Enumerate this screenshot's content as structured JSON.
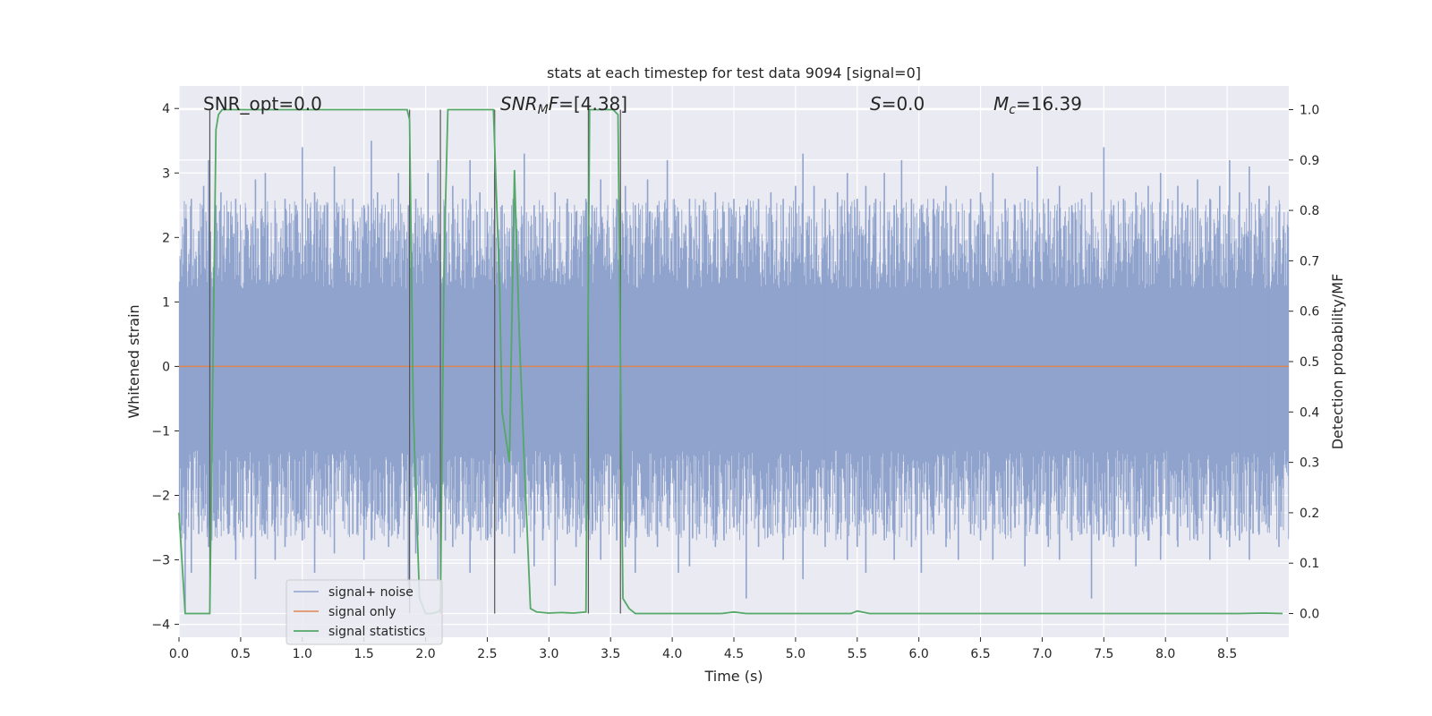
{
  "chart_data": {
    "type": "line",
    "title": "stats at each timestep for test data 9094 [signal=0]",
    "xlabel": "Time (s)",
    "ylabel": "Whitened strain",
    "y2label": "Detection probability/MF",
    "xlim": [
      0,
      9.0
    ],
    "ylim": [
      -4.2,
      4.35
    ],
    "y2lim": [
      -0.047,
      1.047
    ],
    "xticks": [
      "0.0",
      "0.5",
      "1.0",
      "1.5",
      "2.0",
      "2.5",
      "3.0",
      "3.5",
      "4.0",
      "4.5",
      "5.0",
      "5.5",
      "6.0",
      "6.5",
      "7.0",
      "7.5",
      "8.0",
      "8.5"
    ],
    "yticks": [
      "−4",
      "−3",
      "−2",
      "−1",
      "0",
      "1",
      "2",
      "3",
      "4"
    ],
    "y2ticks": [
      "0.0",
      "0.1",
      "0.2",
      "0.3",
      "0.4",
      "0.5",
      "0.6",
      "0.7",
      "0.8",
      "0.9",
      "1.0"
    ],
    "grid": true,
    "legend_position": "lower-left",
    "annotations": {
      "snr_opt": "SNR_opt=0.0",
      "snr_mf_prefix": "SNR",
      "snr_mf_sub": "M",
      "snr_mf_suffix": "F=[4.38]",
      "s_symbol": "S",
      "s_value": "=0.0",
      "mc_symbol": "M",
      "mc_sub": "c",
      "mc_value": "=16.39"
    },
    "series": [
      {
        "name": "signal+ noise",
        "color": "#8fa3cd",
        "style": "noise",
        "band": [
          -1.2,
          1.1
        ],
        "x": [
          0.05,
          0.1,
          0.16,
          0.2,
          0.24,
          0.3,
          0.34,
          0.4,
          0.46,
          0.55,
          0.62,
          0.7,
          0.78,
          0.86,
          0.95,
          1.0,
          1.05,
          1.1,
          1.18,
          1.26,
          1.33,
          1.41,
          1.5,
          1.56,
          1.61,
          1.7,
          1.78,
          1.86,
          1.92,
          2.02,
          2.1,
          2.16,
          2.22,
          2.3,
          2.36,
          2.44,
          2.5,
          2.56,
          2.62,
          2.72,
          2.8,
          2.88,
          2.95,
          3.05,
          3.15,
          3.22,
          3.3,
          3.35,
          3.42,
          3.55,
          3.62,
          3.7,
          3.8,
          3.88,
          3.96,
          4.05,
          4.14,
          4.22,
          4.35,
          4.42,
          4.5,
          4.6,
          4.7,
          4.8,
          4.9,
          5.0,
          5.06,
          5.15,
          5.24,
          5.34,
          5.42,
          5.5,
          5.57,
          5.65,
          5.72,
          5.8,
          5.86,
          5.94,
          6.02,
          6.12,
          6.22,
          6.32,
          6.42,
          6.5,
          6.6,
          6.7,
          6.78,
          6.86,
          6.96,
          7.05,
          7.14,
          7.24,
          7.32,
          7.4,
          7.5,
          7.58,
          7.66,
          7.76,
          7.86,
          7.96,
          8.02,
          8.1,
          8.18,
          8.26,
          8.36,
          8.44,
          8.52,
          8.6,
          8.68,
          8.76,
          8.84,
          8.92
        ],
        "peaks_high": [
          2.3,
          2.6,
          2.1,
          2.8,
          3.2,
          2.5,
          2.7,
          2.4,
          2.6,
          2.2,
          2.9,
          3.0,
          2.4,
          2.6,
          2.5,
          3.4,
          2.3,
          2.7,
          2.5,
          3.1,
          2.3,
          2.6,
          2.5,
          3.5,
          2.7,
          2.4,
          3.0,
          2.5,
          2.6,
          3.0,
          3.2,
          2.5,
          2.8,
          2.6,
          3.2,
          2.7,
          2.4,
          3.0,
          2.5,
          2.6,
          3.3,
          2.5,
          2.5,
          2.7,
          2.6,
          2.4,
          2.6,
          2.5,
          2.9,
          2.6,
          2.8,
          2.5,
          2.9,
          2.5,
          3.2,
          2.4,
          2.6,
          2.5,
          2.7,
          2.4,
          2.6,
          2.5,
          2.6,
          2.7,
          2.6,
          2.8,
          3.3,
          2.8,
          2.6,
          2.7,
          3.0,
          2.6,
          2.8,
          2.6,
          3.0,
          2.5,
          3.2,
          2.6,
          2.5,
          2.6,
          2.8,
          2.4,
          2.6,
          2.7,
          3.0,
          2.6,
          2.5,
          2.6,
          3.1,
          2.6,
          2.8,
          2.5,
          2.6,
          2.7,
          3.4,
          2.5,
          2.6,
          2.7,
          2.8,
          3.0,
          2.6,
          2.8,
          2.5,
          2.9,
          2.6,
          2.8,
          3.2,
          2.7,
          3.1,
          2.6,
          2.8,
          2.4
        ],
        "peaks_low": [
          -3.8,
          -3.2,
          -2.6,
          -2.2,
          -2.8,
          -2.5,
          -2.4,
          -2.6,
          -3.0,
          -2.5,
          -3.3,
          -2.6,
          -3.0,
          -2.8,
          -2.4,
          -2.7,
          -2.5,
          -3.2,
          -2.6,
          -2.9,
          -2.4,
          -2.6,
          -3.0,
          -2.7,
          -2.3,
          -2.8,
          -2.6,
          -3.4,
          -2.9,
          -2.5,
          -3.3,
          -2.7,
          -2.8,
          -2.6,
          -3.2,
          -2.5,
          -2.7,
          -3.0,
          -2.6,
          -2.9,
          -2.5,
          -3.1,
          -2.7,
          -3.4,
          -2.6,
          -2.8,
          -2.5,
          -2.6,
          -3.0,
          -2.7,
          -2.8,
          -3.2,
          -2.6,
          -2.8,
          -2.5,
          -3.2,
          -3.1,
          -2.6,
          -2.8,
          -2.7,
          -2.5,
          -3.6,
          -2.8,
          -2.6,
          -3.0,
          -2.5,
          -3.3,
          -2.6,
          -2.8,
          -2.6,
          -3.0,
          -2.8,
          -3.2,
          -2.6,
          -2.7,
          -3.0,
          -2.5,
          -2.8,
          -3.2,
          -2.6,
          -2.8,
          -3.0,
          -2.6,
          -2.7,
          -3.0,
          -2.6,
          -2.5,
          -3.1,
          -2.6,
          -2.8,
          -3.0,
          -2.7,
          -2.6,
          -3.6,
          -2.6,
          -2.8,
          -2.6,
          -3.1,
          -2.7,
          -3.0,
          -2.6,
          -2.8,
          -2.5,
          -2.7,
          -3.0,
          -2.6,
          -2.8,
          -2.7,
          -3.0,
          -2.6,
          -2.5,
          -2.8
        ]
      },
      {
        "name": "signal only",
        "color": "#dd8452",
        "x": [
          0,
          9.0
        ],
        "y": [
          0,
          0
        ]
      },
      {
        "name": "signal statistics",
        "color": "#55a868",
        "axis": "right",
        "x": [
          0.0,
          0.05,
          0.25,
          0.3,
          0.32,
          0.35,
          0.4,
          0.6,
          1.0,
          1.5,
          1.85,
          1.87,
          1.9,
          1.95,
          2.0,
          2.05,
          2.1,
          2.12,
          2.15,
          2.18,
          2.2,
          2.25,
          2.5,
          2.55,
          2.6,
          2.62,
          2.65,
          2.68,
          2.72,
          2.76,
          2.8,
          2.85,
          2.9,
          3.0,
          3.1,
          3.2,
          3.3,
          3.33,
          3.38,
          3.42,
          3.47,
          3.52,
          3.56,
          3.6,
          3.65,
          3.7,
          4.0,
          4.4,
          4.5,
          4.6,
          5.0,
          5.45,
          5.5,
          5.6,
          6.0,
          7.0,
          8.0,
          8.6,
          8.8,
          8.95
        ],
        "y": [
          0.2,
          0.0,
          0.0,
          0.96,
          0.99,
          1.0,
          1.0,
          1.0,
          1.0,
          1.0,
          1.0,
          0.98,
          0.4,
          0.03,
          0.0,
          0.0,
          0.003,
          0.01,
          0.7,
          1.0,
          1.0,
          1.0,
          1.0,
          1.0,
          0.65,
          0.4,
          0.35,
          0.3,
          0.88,
          0.55,
          0.3,
          0.01,
          0.003,
          0.001,
          0.002,
          0.001,
          0.003,
          1.0,
          1.0,
          1.0,
          1.0,
          1.0,
          0.99,
          0.03,
          0.01,
          0.0,
          0.0,
          0.0,
          0.003,
          0.0,
          0.0,
          0.0,
          0.005,
          0.0,
          0.0,
          0.0,
          0.0,
          0.0,
          0.001,
          0.0
        ]
      }
    ],
    "vlines": [
      0.25,
      1.87,
      2.12,
      2.56,
      3.32,
      3.58
    ]
  }
}
